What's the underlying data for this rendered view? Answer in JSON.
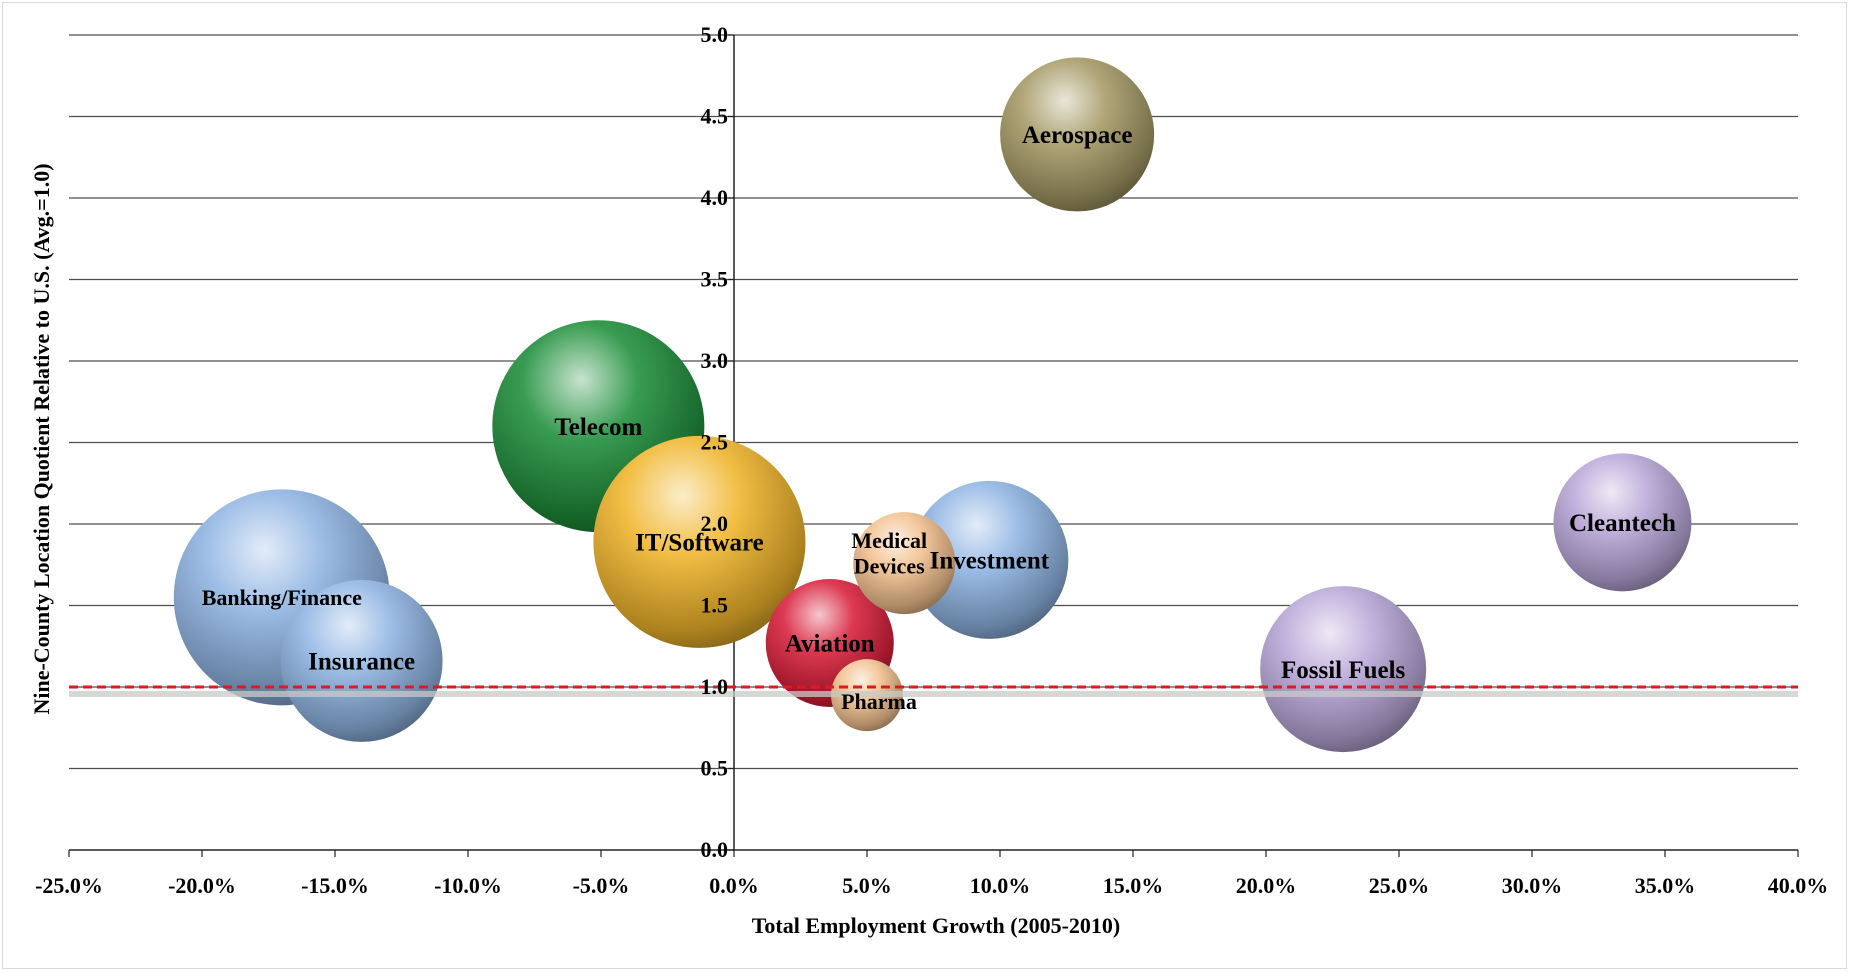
{
  "chart_data": {
    "type": "scatter",
    "subtype": "bubble",
    "title": "",
    "xlabel": "Total Employment Growth (2005-2010)",
    "ylabel": "Nine-County Location Quotient Relative to U.S. (Avg.=1.0)",
    "xlim": [
      -0.25,
      0.4
    ],
    "ylim": [
      0.0,
      5.0
    ],
    "x_ticks": [
      -0.25,
      -0.2,
      -0.15,
      -0.1,
      -0.05,
      0.0,
      0.05,
      0.1,
      0.15,
      0.2,
      0.25,
      0.3,
      0.35,
      0.4
    ],
    "x_tick_labels": [
      "-25.0%",
      "-20.0%",
      "-15.0%",
      "-10.0%",
      "-5.0%",
      "0.0%",
      "5.0%",
      "10.0%",
      "15.0%",
      "20.0%",
      "25.0%",
      "30.0%",
      "35.0%",
      "40.0%"
    ],
    "y_ticks": [
      0.0,
      0.5,
      1.0,
      1.5,
      2.0,
      2.5,
      3.0,
      3.5,
      4.0,
      4.5,
      5.0
    ],
    "y_tick_labels": [
      "0.0",
      "0.5",
      "1.0",
      "1.5",
      "2.0",
      "2.5",
      "3.0",
      "3.5",
      "4.0",
      "4.5",
      "5.0"
    ],
    "grid": "horizontal",
    "legend": "none",
    "reference_line": {
      "y": 1.0,
      "style": "dashed",
      "color": "#e0191b"
    },
    "bubbles": [
      {
        "label": "Banking/Finance",
        "x": -0.17,
        "y": 1.55,
        "size": 1.08,
        "color": "#8fb4e3"
      },
      {
        "label": "Insurance",
        "x": -0.14,
        "y": 1.16,
        "size": 0.81,
        "color": "#8fb4e3"
      },
      {
        "label": "Telecom",
        "x": -0.051,
        "y": 2.6,
        "size": 1.06,
        "color": "#1e8f3a"
      },
      {
        "label": "IT/Software",
        "x": -0.013,
        "y": 1.89,
        "size": 1.06,
        "color": "#f0b52b"
      },
      {
        "label": "Aviation",
        "x": 0.036,
        "y": 1.27,
        "size": 0.64,
        "color": "#d81f3a"
      },
      {
        "label": "Pharma",
        "x": 0.05,
        "y": 0.95,
        "size": 0.36,
        "color": "#f2c08e"
      },
      {
        "label": "Medical Devices",
        "x": 0.064,
        "y": 1.76,
        "size": 0.51,
        "color": "#f2c08e"
      },
      {
        "label": "Investment",
        "x": 0.096,
        "y": 1.78,
        "size": 0.79,
        "color": "#8fb4e3"
      },
      {
        "label": "Aerospace",
        "x": 0.129,
        "y": 4.39,
        "size": 0.77,
        "color": "#a59a66"
      },
      {
        "label": "Fossil Fuels",
        "x": 0.229,
        "y": 1.11,
        "size": 0.83,
        "color": "#b9a6d8"
      },
      {
        "label": "Cleantech",
        "x": 0.334,
        "y": 2.01,
        "size": 0.69,
        "color": "#b9a6d8"
      }
    ]
  }
}
